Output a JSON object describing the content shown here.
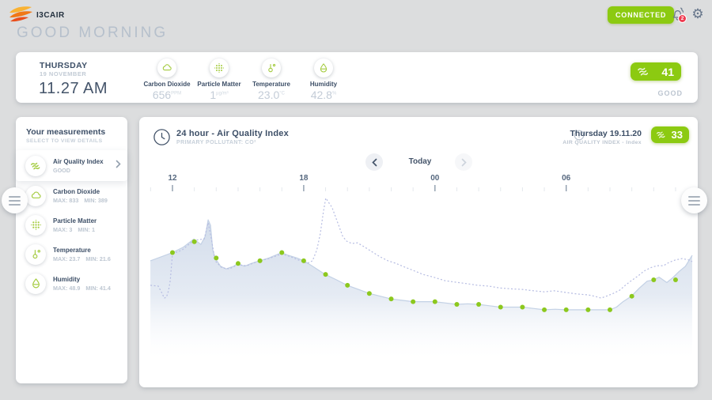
{
  "header": {
    "brand": "I3CAIR",
    "greeting": "GOOD MORNING",
    "connected_label": "CONNECTED",
    "notification_count": "2"
  },
  "summary": {
    "day": "THURSDAY",
    "date": "19 NOVEMBER",
    "time": "11.27 AM",
    "metrics": [
      {
        "name": "Carbon Dioxide",
        "value": "656",
        "unit": "PPM",
        "icon": "cloud-icon"
      },
      {
        "name": "Particle Matter",
        "value": "1",
        "unit": "µg/m³",
        "icon": "dot-grid-icon"
      },
      {
        "name": "Temperature",
        "value": "23.0",
        "unit": "°C",
        "icon": "thermometer-icon"
      },
      {
        "name": "Humidity",
        "value": "42.8",
        "unit": "%",
        "icon": "drop-icon"
      }
    ],
    "aqi_value": "41",
    "aqi_status": "GOOD"
  },
  "sidebar": {
    "title": "Your measurements",
    "subtitle": "SELECT TO VIEW DETAILS",
    "items": [
      {
        "label": "Air Quality Index",
        "max": "GOOD",
        "min": "",
        "icon": "waves-icon",
        "selected": true
      },
      {
        "label": "Carbon Dioxide",
        "max": "MAX: 833",
        "min": "MIN: 389",
        "icon": "cloud-icon"
      },
      {
        "label": "Particle Matter",
        "max": "MAX: 3",
        "min": "MIN: 1",
        "icon": "dot-grid-icon"
      },
      {
        "label": "Temperature",
        "max": "MAX: 23.7",
        "min": "MIN: 21.6",
        "icon": "thermometer-icon"
      },
      {
        "label": "Humidity",
        "max": "MAX: 48.9",
        "min": "MIN: 41.4",
        "icon": "drop-icon"
      }
    ]
  },
  "chart": {
    "title": "24 hour - Air Quality Index",
    "subtitle": "PRIMARY POLLUTANT: CO²",
    "date_label": "Thursday 19.11.20",
    "index_label": "AIR QUALITY INDEX  -  Index",
    "badge_value": "33",
    "nav_label": "Today"
  },
  "chart_data": {
    "type": "area",
    "title": "24 hour - Air Quality Index",
    "x_unit": "hour of day, 24h window starting at 12:00",
    "y_unit": "AQI index (estimated; chart has no y-axis labels)",
    "legend": "solid filled area with hourly dots = Air Quality Index; dashed line = comparison trace",
    "tick_labels": [
      "12",
      "18",
      "00",
      "06"
    ],
    "tick_hours": [
      0,
      6,
      12,
      18
    ],
    "x_range_hours": [
      -1.01,
      23.76
    ],
    "hours": [
      "12",
      "13",
      "14",
      "15",
      "16",
      "17",
      "18",
      "19",
      "20",
      "21",
      "22",
      "23",
      "00",
      "01",
      "02",
      "03",
      "04",
      "05",
      "06",
      "07",
      "08",
      "09",
      "10",
      "11"
    ],
    "aqi_values": [
      51,
      55,
      49,
      47,
      48,
      51,
      48,
      43,
      39,
      36,
      34,
      33,
      33,
      32,
      32,
      31,
      31,
      30,
      30,
      30,
      30,
      35,
      41,
      41
    ],
    "area_outline": [
      [
        -1.01,
        48
      ],
      [
        0,
        51
      ],
      [
        0.5,
        53
      ],
      [
        0.98,
        56
      ],
      [
        1.3,
        54
      ],
      [
        1.5,
        57
      ],
      [
        1.63,
        63
      ],
      [
        1.74,
        61
      ],
      [
        1.84,
        52
      ],
      [
        1.95,
        49
      ],
      [
        2.2,
        46
      ],
      [
        2.45,
        45
      ],
      [
        2.8,
        46
      ],
      [
        2.97,
        47
      ],
      [
        3.3,
        46
      ],
      [
        3.6,
        47
      ],
      [
        3.98,
        48
      ],
      [
        4.4,
        49
      ],
      [
        4.99,
        51
      ],
      [
        5.3,
        50
      ],
      [
        5.7,
        49
      ],
      [
        6.0,
        48
      ],
      [
        6.4,
        46
      ],
      [
        6.98,
        43
      ],
      [
        7.5,
        41
      ],
      [
        7.99,
        39
      ],
      [
        8.5,
        37.5
      ],
      [
        9.0,
        36
      ],
      [
        9.5,
        35
      ],
      [
        9.98,
        34
      ],
      [
        10.5,
        33.5
      ],
      [
        10.99,
        33
      ],
      [
        11.97,
        33
      ],
      [
        12.5,
        32.5
      ],
      [
        12.98,
        32
      ],
      [
        13.5,
        32.2
      ],
      [
        13.96,
        32
      ],
      [
        14.5,
        31.5
      ],
      [
        14.97,
        31
      ],
      [
        15.99,
        31
      ],
      [
        16.5,
        30.5
      ],
      [
        17.0,
        30
      ],
      [
        17.5,
        30.2
      ],
      [
        17.97,
        30
      ],
      [
        19.0,
        30
      ],
      [
        20.0,
        30
      ],
      [
        20.3,
        31
      ],
      [
        20.6,
        33
      ],
      [
        20.98,
        35
      ],
      [
        21.35,
        38
      ],
      [
        21.7,
        40.5
      ],
      [
        21.99,
        41
      ],
      [
        22.25,
        42
      ],
      [
        22.6,
        40
      ],
      [
        22.9,
        42
      ],
      [
        23.15,
        44
      ],
      [
        23.45,
        46
      ],
      [
        23.76,
        50
      ]
    ],
    "dashed_outline": [
      [
        -1.01,
        39
      ],
      [
        -0.65,
        38.7
      ],
      [
        -0.47,
        36
      ],
      [
        -0.38,
        34.3
      ],
      [
        -0.28,
        34.6
      ],
      [
        -0.18,
        37
      ],
      [
        -0.1,
        40.7
      ],
      [
        0,
        50.5
      ],
      [
        0.45,
        52
      ],
      [
        0.98,
        55.5
      ],
      [
        1.45,
        56
      ],
      [
        1.63,
        62
      ],
      [
        1.8,
        55
      ],
      [
        1.95,
        48
      ],
      [
        2.25,
        45.5
      ],
      [
        2.6,
        45
      ],
      [
        2.97,
        46.5
      ],
      [
        3.4,
        46.2
      ],
      [
        3.9,
        47.8
      ],
      [
        4.4,
        48.8
      ],
      [
        4.99,
        50.5
      ],
      [
        5.4,
        49.5
      ],
      [
        5.85,
        48
      ],
      [
        6.15,
        47
      ],
      [
        6.4,
        48
      ],
      [
        6.6,
        52
      ],
      [
        6.76,
        58
      ],
      [
        6.9,
        66
      ],
      [
        7.01,
        71
      ],
      [
        7.3,
        67.5
      ],
      [
        7.6,
        61
      ],
      [
        7.78,
        57
      ],
      [
        7.96,
        55.2
      ],
      [
        8.2,
        54.3
      ],
      [
        8.45,
        54.6
      ],
      [
        8.75,
        53.2
      ],
      [
        9.1,
        51.4
      ],
      [
        9.5,
        49.4
      ],
      [
        9.85,
        48
      ],
      [
        10.2,
        47.1
      ],
      [
        10.55,
        45.9
      ],
      [
        10.99,
        44.5
      ],
      [
        11.45,
        43
      ],
      [
        11.97,
        41.9
      ],
      [
        12.45,
        40.7
      ],
      [
        12.98,
        40.1
      ],
      [
        13.45,
        39.6
      ],
      [
        13.96,
        39
      ],
      [
        14.45,
        38.7
      ],
      [
        14.97,
        38
      ],
      [
        15.5,
        37.7
      ],
      [
        15.99,
        37.5
      ],
      [
        16.5,
        37
      ],
      [
        17.0,
        36.6
      ],
      [
        17.45,
        37
      ],
      [
        17.97,
        36.4
      ],
      [
        18.5,
        35.8
      ],
      [
        18.99,
        35.5
      ],
      [
        19.3,
        35
      ],
      [
        19.6,
        34.3
      ],
      [
        19.9,
        35.2
      ],
      [
        20.15,
        36
      ],
      [
        20.45,
        37.2
      ],
      [
        20.7,
        39
      ],
      [
        20.98,
        40.7
      ],
      [
        21.3,
        42.5
      ],
      [
        21.55,
        44.2
      ],
      [
        21.85,
        45.4
      ],
      [
        22.15,
        46.2
      ],
      [
        22.45,
        46.2
      ],
      [
        22.7,
        47.4
      ],
      [
        23.0,
        48.3
      ],
      [
        23.3,
        48.8
      ],
      [
        23.6,
        48.3
      ],
      [
        23.76,
        47.7
      ]
    ],
    "colors": {
      "dot": "#8cc81e",
      "area_stroke": "#c3d1e5",
      "area_fill_top": "#ced9e9",
      "dashed": "#b6bce2",
      "tick_major": "#8e9cac",
      "tick_minor": "#e4e8ed",
      "tick_label": "#56687f",
      "accent_green": "#8cca11"
    }
  }
}
